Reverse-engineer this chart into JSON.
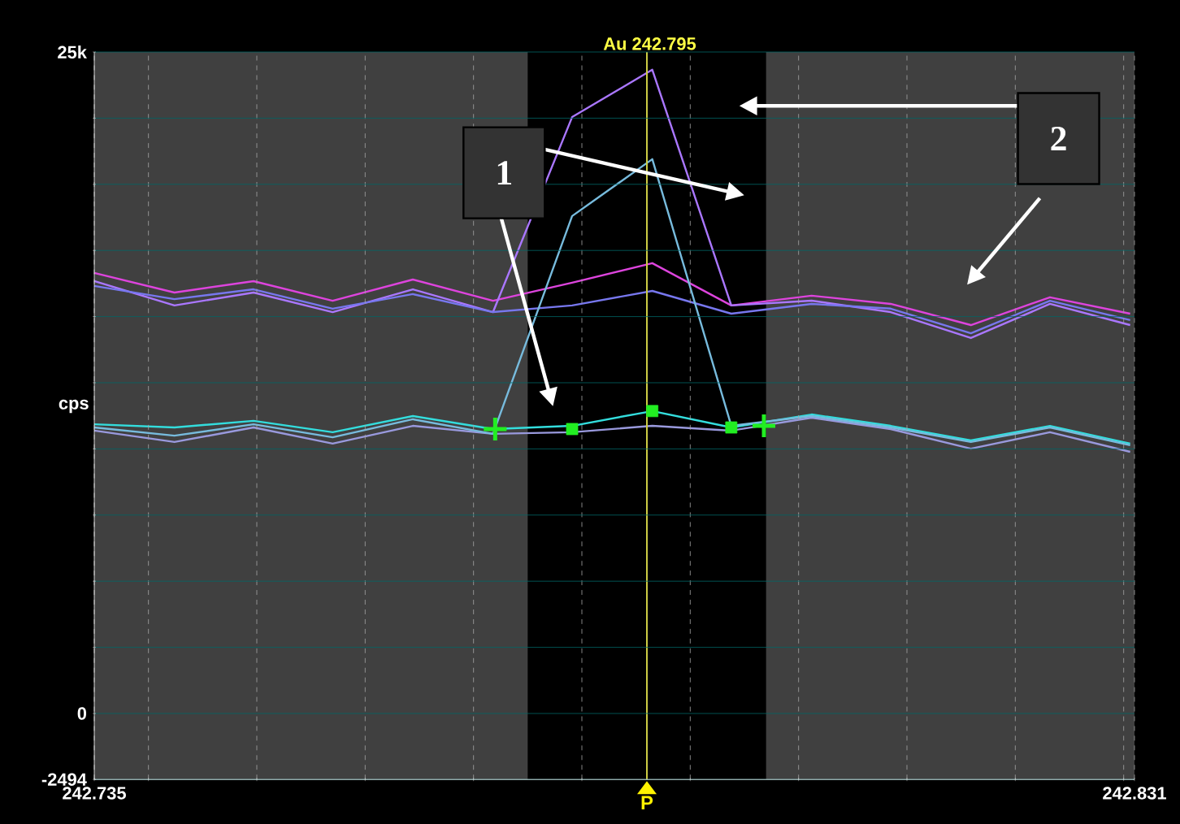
{
  "chart_data": {
    "type": "line",
    "title": "Au 242.795",
    "ylabel": "cps",
    "x": [
      242.735,
      242.7424,
      242.7497,
      242.757,
      242.7644,
      242.7718,
      242.7791,
      242.7865,
      242.7938,
      242.8012,
      242.8085,
      242.8159,
      242.8232,
      242.8306
    ],
    "series": [
      {
        "color": "#dd44dd",
        "values": [
          16650,
          15910,
          16340,
          15600,
          16400,
          15600,
          16280,
          17020,
          15420,
          15790,
          15480,
          14680,
          15730,
          15110
        ]
      },
      {
        "color": "#aa77ff",
        "values": [
          16340,
          15420,
          15910,
          15170,
          16030,
          15170,
          22540,
          24330,
          15420,
          15600,
          15170,
          14190,
          15480,
          14680
        ]
      },
      {
        "color": "#7777ee",
        "values": [
          16160,
          15660,
          16030,
          15300,
          15850,
          15170,
          15420,
          15970,
          15110,
          15480,
          15300,
          14370,
          15600,
          14870
        ]
      },
      {
        "color": "#33dddd",
        "values": [
          10930,
          10810,
          11060,
          10630,
          11240,
          10750,
          10870,
          11430,
          10810,
          11300,
          10870,
          10320,
          10870,
          10200
        ]
      },
      {
        "color": "#9999dd",
        "values": [
          10690,
          10260,
          10810,
          10200,
          10870,
          10570,
          10630,
          10870,
          10690,
          11180,
          10750,
          10010,
          10630,
          9890
        ]
      },
      {
        "color": "#77bbdd",
        "values": [
          10810,
          10500,
          10930,
          10440,
          11120,
          10570,
          18800,
          20950,
          10870,
          11240,
          10810,
          10260,
          10810,
          10140
        ]
      },
      {
        "type": "scatter",
        "marker": "square",
        "color": "#22ee22",
        "x": [
          242.7791,
          242.7865,
          242.7938
        ],
        "values": [
          10750,
          11430,
          10810
        ]
      },
      {
        "type": "scatter",
        "marker": "cross",
        "color": "#22ee22",
        "x": [
          242.772,
          242.7968
        ],
        "values": [
          10750,
          10870
        ]
      }
    ],
    "xlim": [
      242.735,
      242.831
    ],
    "xticks": [
      242.735,
      {
        "value": 242.74,
        "label": null
      },
      {
        "value": 242.75,
        "label": null
      },
      {
        "value": 242.76,
        "label": null
      },
      {
        "value": 242.77,
        "label": null
      },
      {
        "value": 242.78,
        "label": null
      },
      {
        "value": 242.79,
        "label": null
      },
      {
        "value": 242.8,
        "label": null
      },
      {
        "value": 242.81,
        "label": null
      },
      {
        "value": 242.82,
        "label": null
      },
      {
        "value": 242.83,
        "label": null
      },
      242.831
    ],
    "ylim": [
      -2494,
      25000
    ],
    "yticks": [
      -2494,
      0,
      {
        "value": 2500,
        "label": null
      },
      {
        "value": 5000,
        "label": null
      },
      {
        "value": 7500,
        "label": null
      },
      {
        "value": 10000,
        "label": null
      },
      {
        "value": 12500,
        "label": null
      },
      {
        "value": 15000,
        "label": null
      },
      {
        "value": 17500,
        "label": null
      },
      {
        "value": 20000,
        "label": null
      },
      {
        "value": 22500,
        "label": null
      },
      {
        "value": 25000,
        "label": "25k"
      }
    ],
    "grid": true,
    "ref_lines": [
      {
        "axis": "x",
        "value": 242.786,
        "label": "P",
        "color": "#cccc44"
      }
    ],
    "bands": [
      {
        "axis": "x",
        "from": 242.775,
        "to": 242.797,
        "color": "#000000"
      }
    ],
    "annotations": [
      "1",
      "2"
    ]
  }
}
